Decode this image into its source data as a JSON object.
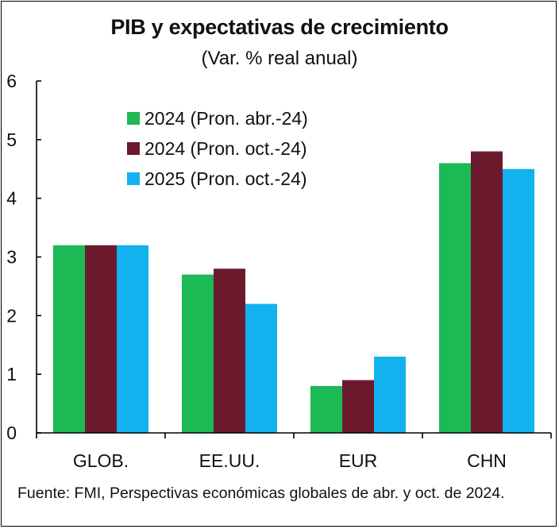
{
  "chart_data": {
    "type": "bar",
    "title": "PIB y expectativas de crecimiento",
    "subtitle": "(Var. % real anual)",
    "categories": [
      "GLOB.",
      "EE.UU.",
      "EUR",
      "CHN"
    ],
    "series": [
      {
        "name": "2024 (Pron. abr.-24)",
        "color": "#1db954",
        "values": [
          3.2,
          2.7,
          0.8,
          4.6
        ]
      },
      {
        "name": "2024 (Pron. oct.-24)",
        "color": "#6b1a2e",
        "values": [
          3.2,
          2.8,
          0.9,
          4.8
        ]
      },
      {
        "name": "2025 (Pron. oct.-24)",
        "color": "#12b2ee",
        "values": [
          3.2,
          2.2,
          1.3,
          4.5
        ]
      }
    ],
    "yticks": [
      "0",
      "1",
      "2",
      "3",
      "4",
      "5",
      "6"
    ],
    "ylim": [
      0,
      6
    ],
    "legend_position": "top-left",
    "grid": false,
    "source": "Fuente: FMI, Perspectivas económicas globales de abr. y oct. de 2024."
  }
}
